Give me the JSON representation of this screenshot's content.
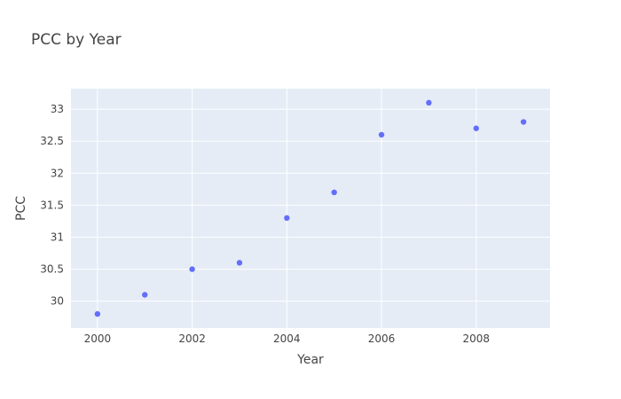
{
  "chart_data": {
    "type": "scatter",
    "title": "PCC by Year",
    "xlabel": "Year",
    "ylabel": "PCC",
    "x": [
      2000,
      2001,
      2002,
      2003,
      2004,
      2005,
      2006,
      2007,
      2008,
      2009
    ],
    "y": [
      29.8,
      30.1,
      30.5,
      30.6,
      31.3,
      31.7,
      32.6,
      33.1,
      32.7,
      32.8
    ],
    "xlim": [
      1999.44,
      2009.56
    ],
    "ylim": [
      29.58,
      33.32
    ],
    "xticks": [
      2000,
      2002,
      2004,
      2006,
      2008
    ],
    "yticks": [
      30,
      30.5,
      31,
      31.5,
      32,
      32.5,
      33
    ],
    "ytick_labels": [
      "30",
      "30.5",
      "31",
      "31.5",
      "32",
      "32.5",
      "33"
    ],
    "grid": true,
    "colors": {
      "marker": "#636efa",
      "plot_bg": "#e5ecf6",
      "grid": "#ffffff"
    }
  }
}
